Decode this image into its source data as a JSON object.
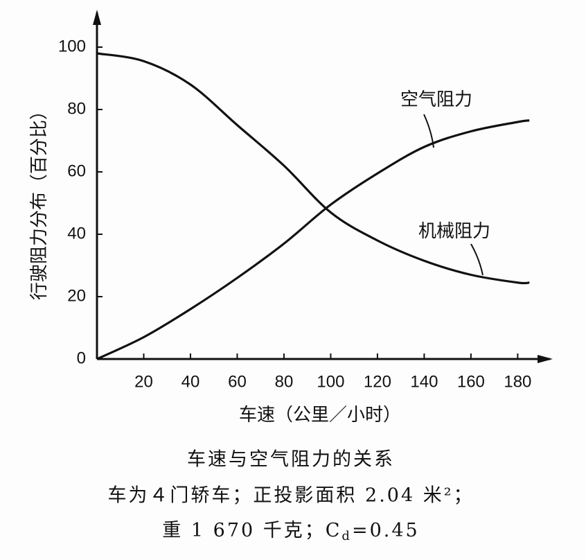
{
  "chart_data": {
    "type": "line",
    "x": [
      0,
      20,
      40,
      60,
      80,
      100,
      120,
      140,
      160,
      180,
      185
    ],
    "series": [
      {
        "name": "空气阻力",
        "color": "#111111",
        "values": [
          0,
          7,
          16,
          26,
          37,
          49.5,
          59.5,
          68,
          73,
          76,
          76.5
        ]
      },
      {
        "name": "机械阻力",
        "color": "#111111",
        "values": [
          98,
          95.5,
          88,
          75,
          62,
          47,
          38,
          31.5,
          27,
          24.5,
          24.5
        ]
      }
    ],
    "xlim": [
      0,
      195
    ],
    "ylim": [
      0,
      112
    ],
    "xticks": [
      20,
      40,
      60,
      80,
      100,
      120,
      140,
      160,
      180
    ],
    "yticks": [
      0,
      20,
      40,
      60,
      80,
      100
    ],
    "x_label": "车速（公里／小时）",
    "y_label": "行驶阻力分布（百分比）",
    "caption": [
      "车速与空气阻力的关系",
      "车为４门轿车；正投影面积 2.04 米²；",
      "重 1 670 千克；C"
    ],
    "caption_subscript": "d",
    "caption_tail": "=0.45"
  }
}
